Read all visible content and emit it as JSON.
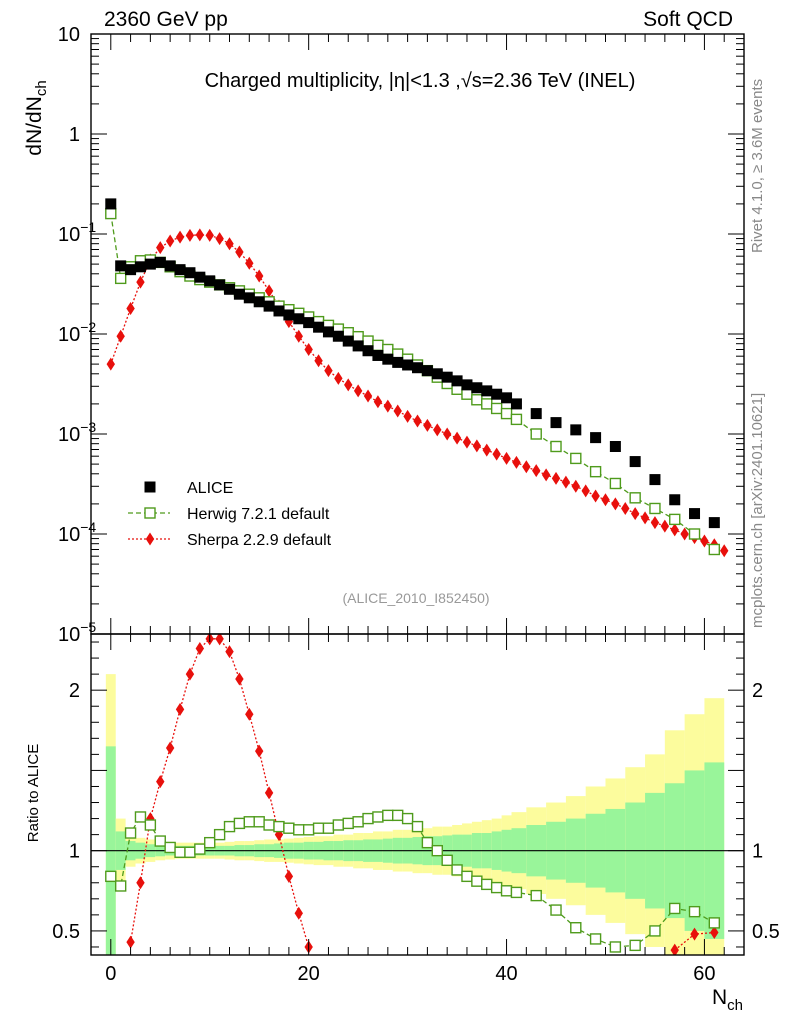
{
  "header": {
    "left": "2360 GeV pp",
    "right": "Soft QCD"
  },
  "side": {
    "rivet": "Rivet 4.1.0, ≥ 3.6M events",
    "mcplots": "mcplots.cern.ch [arXiv:2401.10621]"
  },
  "chart_data": [
    {
      "type": "scatter",
      "panel": "main",
      "title": "Charged multiplicity, |η|<1.3 ,√s=2.36 TeV (INEL)",
      "analysis_tag": "(ALICE_2010_I852450)",
      "xlabel": "N_ch",
      "ylabel": "dN/dN_ch",
      "yscale": "log",
      "ylim": [
        1e-05,
        10
      ],
      "xlim": [
        -2,
        64
      ],
      "y_tick_labels": [
        "10",
        "1",
        "10^-1",
        "10^-2",
        "10^-3",
        "10^-4",
        "10^-5"
      ],
      "legend": [
        "ALICE",
        "Herwig 7.2.1 default",
        "Sherpa 2.2.9 default"
      ],
      "legend_position": "bottom-left",
      "series": [
        {
          "name": "ALICE",
          "marker": "filled-square",
          "color": "#000000",
          "x": [
            0,
            1,
            2,
            3,
            4,
            5,
            6,
            7,
            8,
            9,
            10,
            11,
            12,
            13,
            14,
            15,
            16,
            17,
            18,
            19,
            20,
            21,
            22,
            23,
            24,
            25,
            26,
            27,
            28,
            29,
            30,
            31,
            32,
            33,
            34,
            35,
            36,
            37,
            38,
            39,
            40,
            41,
            43,
            45,
            47,
            49,
            51,
            53,
            55,
            57,
            59,
            61
          ],
          "y": [
            0.2,
            0.048,
            0.044,
            0.047,
            0.05,
            0.052,
            0.048,
            0.044,
            0.041,
            0.037,
            0.034,
            0.031,
            0.028,
            0.025,
            0.023,
            0.021,
            0.019,
            0.017,
            0.0155,
            0.0142,
            0.013,
            0.0117,
            0.0105,
            0.0095,
            0.0085,
            0.0076,
            0.0068,
            0.0061,
            0.0056,
            0.0052,
            0.0049,
            0.0046,
            0.0043,
            0.004,
            0.0037,
            0.0034,
            0.0031,
            0.0029,
            0.0027,
            0.0025,
            0.0023,
            0.002,
            0.0016,
            0.0013,
            0.0011,
            0.00092,
            0.00075,
            0.00053,
            0.00035,
            0.00022,
            0.00016,
            0.00013
          ]
        },
        {
          "name": "Herwig 7.2.1 default",
          "marker": "open-square",
          "line": "dashed",
          "color": "#4f9b1c",
          "x": [
            0,
            1,
            2,
            3,
            4,
            5,
            6,
            7,
            8,
            9,
            10,
            11,
            12,
            13,
            14,
            15,
            16,
            17,
            18,
            19,
            20,
            21,
            22,
            23,
            24,
            25,
            26,
            27,
            28,
            29,
            30,
            31,
            32,
            33,
            34,
            35,
            36,
            37,
            38,
            39,
            40,
            41,
            43,
            45,
            47,
            49,
            51,
            53,
            55,
            57,
            59,
            61
          ],
          "y": [
            0.16,
            0.036,
            0.047,
            0.054,
            0.055,
            0.052,
            0.047,
            0.042,
            0.038,
            0.035,
            0.033,
            0.031,
            0.029,
            0.027,
            0.025,
            0.023,
            0.021,
            0.019,
            0.0175,
            0.0161,
            0.0148,
            0.0133,
            0.0122,
            0.0112,
            0.0103,
            0.0094,
            0.0085,
            0.0077,
            0.007,
            0.0063,
            0.0056,
            0.0049,
            0.0043,
            0.0037,
            0.0032,
            0.0028,
            0.0025,
            0.0022,
            0.002,
            0.0018,
            0.0016,
            0.0014,
            0.001,
            0.00075,
            0.00057,
            0.00042,
            0.00032,
            0.00023,
            0.00018,
            0.00014,
            0.0001,
            7e-05
          ]
        },
        {
          "name": "Sherpa 2.2.9 default",
          "marker": "filled-diamond",
          "line": "dotted",
          "color": "#e8100c",
          "x": [
            0,
            1,
            2,
            3,
            4,
            5,
            6,
            7,
            8,
            9,
            10,
            11,
            12,
            13,
            14,
            15,
            16,
            17,
            18,
            19,
            20,
            21,
            22,
            23,
            24,
            25,
            26,
            27,
            28,
            29,
            30,
            31,
            32,
            33,
            34,
            35,
            36,
            37,
            38,
            39,
            40,
            41,
            42,
            43,
            44,
            45,
            46,
            47,
            48,
            49,
            50,
            51,
            52,
            53,
            54,
            55,
            56,
            57,
            58,
            59,
            60,
            61,
            62
          ],
          "y": [
            0.005,
            0.0095,
            0.018,
            0.033,
            0.055,
            0.073,
            0.085,
            0.093,
            0.097,
            0.098,
            0.097,
            0.09,
            0.08,
            0.066,
            0.051,
            0.038,
            0.027,
            0.019,
            0.0133,
            0.0095,
            0.007,
            0.0054,
            0.0043,
            0.0036,
            0.0031,
            0.0027,
            0.0024,
            0.0021,
            0.0019,
            0.0017,
            0.0015,
            0.00135,
            0.00122,
            0.0011,
            0.001,
            0.00091,
            0.00083,
            0.00076,
            0.00069,
            0.00063,
            0.00057,
            0.00052,
            0.00047,
            0.00043,
            0.00039,
            0.00036,
            0.00033,
            0.0003,
            0.00027,
            0.00024,
            0.00022,
            0.0002,
            0.00018,
            0.00016,
            0.000145,
            0.00013,
            0.00012,
            0.00011,
            0.0001,
            9.2e-05,
            8.5e-05,
            7.8e-05,
            6.8e-05
          ]
        }
      ]
    },
    {
      "type": "line",
      "panel": "ratio",
      "ylabel": "Ratio to ALICE",
      "xlabel": "N_ch",
      "ylim": [
        0.35,
        2.35
      ],
      "xlim": [
        -2,
        64
      ],
      "y_tick_labels": [
        "0.5",
        "1",
        "2"
      ],
      "x_tick_labels": [
        "0",
        "20",
        "40",
        "60"
      ],
      "reference_line": 1,
      "band_colors": {
        "inner": "#99f59a",
        "outer": "#fcfc9d"
      },
      "uncertainty_bands": {
        "x_edges": [
          -0.5,
          0.5,
          1.5,
          2.5,
          3.5,
          4.5,
          5.5,
          6.5,
          7.5,
          8.5,
          9.5,
          10.5,
          11.5,
          12.5,
          13.5,
          14.5,
          15.5,
          16.5,
          17.5,
          18.5,
          19.5,
          20.5,
          21.5,
          22.5,
          23.5,
          24.5,
          25.5,
          26.5,
          27.5,
          28.5,
          29.5,
          30.5,
          31.5,
          32.5,
          33.5,
          34.5,
          35.5,
          36.5,
          37.5,
          38.5,
          39.5,
          40.5,
          42,
          44,
          46,
          48,
          50,
          52,
          54,
          56,
          58,
          60,
          62
        ],
        "inner_half_width": [
          0.65,
          0.12,
          0.06,
          0.05,
          0.04,
          0.035,
          0.03,
          0.03,
          0.03,
          0.03,
          0.03,
          0.03,
          0.03,
          0.035,
          0.035,
          0.04,
          0.04,
          0.045,
          0.05,
          0.05,
          0.055,
          0.055,
          0.06,
          0.06,
          0.065,
          0.065,
          0.07,
          0.07,
          0.075,
          0.08,
          0.08,
          0.085,
          0.09,
          0.09,
          0.095,
          0.1,
          0.1,
          0.11,
          0.11,
          0.12,
          0.13,
          0.14,
          0.16,
          0.18,
          0.2,
          0.23,
          0.26,
          0.3,
          0.36,
          0.42,
          0.5,
          0.55
        ],
        "outer_half_width": [
          1.1,
          0.2,
          0.1,
          0.08,
          0.07,
          0.06,
          0.055,
          0.05,
          0.05,
          0.05,
          0.05,
          0.05,
          0.055,
          0.06,
          0.06,
          0.065,
          0.07,
          0.07,
          0.075,
          0.08,
          0.085,
          0.09,
          0.09,
          0.1,
          0.1,
          0.11,
          0.11,
          0.12,
          0.12,
          0.13,
          0.13,
          0.14,
          0.14,
          0.15,
          0.15,
          0.16,
          0.17,
          0.18,
          0.19,
          0.2,
          0.22,
          0.24,
          0.27,
          0.3,
          0.34,
          0.4,
          0.45,
          0.52,
          0.6,
          0.75,
          0.85,
          0.95
        ]
      },
      "series": [
        {
          "name": "Herwig 7.2.1 default",
          "color": "#4f9b1c",
          "x": [
            0,
            1,
            2,
            3,
            4,
            5,
            6,
            7,
            8,
            9,
            10,
            11,
            12,
            13,
            14,
            15,
            16,
            17,
            18,
            19,
            20,
            21,
            22,
            23,
            24,
            25,
            26,
            27,
            28,
            29,
            30,
            31,
            32,
            33,
            34,
            35,
            36,
            37,
            38,
            39,
            40,
            41,
            43,
            45,
            47,
            49,
            51,
            53,
            55,
            57,
            59,
            61
          ],
          "y": [
            0.84,
            0.78,
            1.11,
            1.21,
            1.16,
            1.06,
            1.02,
            0.99,
            0.99,
            1.01,
            1.05,
            1.1,
            1.15,
            1.17,
            1.18,
            1.18,
            1.16,
            1.15,
            1.14,
            1.13,
            1.13,
            1.14,
            1.14,
            1.16,
            1.17,
            1.18,
            1.2,
            1.21,
            1.22,
            1.22,
            1.2,
            1.15,
            1.05,
            1.0,
            0.94,
            0.88,
            0.84,
            0.81,
            0.79,
            0.77,
            0.75,
            0.74,
            0.72,
            0.63,
            0.52,
            0.45,
            0.4,
            0.41,
            0.5,
            0.64,
            0.62,
            0.55
          ]
        },
        {
          "name": "Sherpa 2.2.9 default",
          "color": "#e8100c",
          "x": [
            2,
            3,
            4,
            5,
            6,
            7,
            8,
            9,
            10,
            11,
            12,
            13,
            14,
            15,
            16,
            17,
            18,
            19,
            20,
            57,
            59,
            61
          ],
          "y": [
            0.43,
            0.8,
            1.2,
            1.43,
            1.64,
            1.88,
            2.1,
            2.26,
            2.32,
            2.32,
            2.24,
            2.07,
            1.85,
            1.62,
            1.36,
            1.1,
            0.84,
            0.61,
            0.4,
            0.38,
            0.48,
            0.49
          ]
        }
      ]
    }
  ]
}
